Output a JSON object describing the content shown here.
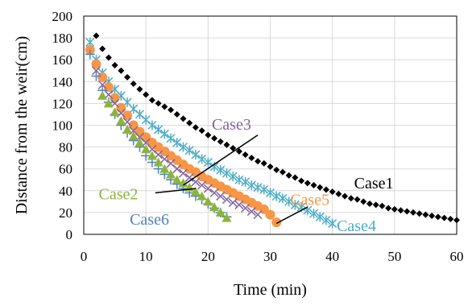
{
  "chart_data": {
    "type": "scatter",
    "xlabel": "Time (min)",
    "ylabel": "Distance from the weir(cm)",
    "xlim": [
      0,
      60
    ],
    "ylim": [
      0,
      200
    ],
    "xticks": [
      0,
      10,
      20,
      30,
      40,
      50,
      60
    ],
    "yticks": [
      0,
      20,
      40,
      60,
      80,
      100,
      120,
      140,
      160,
      180,
      200
    ],
    "grid": true,
    "annotations": [
      {
        "id": "case1",
        "text": "Case1",
        "color": "#000000"
      },
      {
        "id": "case2",
        "text": "Case2",
        "color": "#8cb43c"
      },
      {
        "id": "case3",
        "text": "Case3",
        "color": "#8064a2"
      },
      {
        "id": "case4",
        "text": "Case4",
        "color": "#4bacc6"
      },
      {
        "id": "case5",
        "text": "Case5",
        "color": "#f79646"
      },
      {
        "id": "case6",
        "text": "Case6",
        "color": "#4f81bd"
      }
    ],
    "series": [
      {
        "id": "case1",
        "color": "#000000",
        "marker": "diamond",
        "x": [
          2,
          3,
          4,
          5,
          6,
          7,
          8,
          9,
          10,
          11,
          12,
          13,
          14,
          15,
          16,
          17,
          18,
          19,
          20,
          21,
          22,
          23,
          24,
          25,
          26,
          27,
          28,
          29,
          30,
          31,
          32,
          33,
          34,
          35,
          36,
          37,
          38,
          39,
          40,
          41,
          42,
          43,
          44,
          45,
          46,
          47,
          48,
          49,
          50,
          51,
          52,
          53,
          54,
          55,
          56,
          57,
          58,
          59,
          60
        ],
        "y": [
          182,
          170,
          162,
          155,
          150,
          144,
          138,
          133,
          128,
          123,
          120,
          117,
          114,
          110,
          106,
          102,
          98,
          95,
          91,
          88,
          85,
          82,
          79,
          76,
          73,
          70,
          67,
          65,
          62,
          59,
          57,
          54,
          52,
          49,
          47,
          45,
          43,
          41,
          39,
          37,
          35,
          33,
          32,
          30,
          28,
          27,
          26,
          24,
          23,
          22,
          21,
          20,
          19,
          18,
          17,
          16,
          15,
          14,
          13
        ]
      },
      {
        "id": "case4",
        "color": "#4bacc6",
        "marker": "asterisk",
        "x": [
          1,
          2,
          3,
          4,
          5,
          6,
          7,
          8,
          9,
          10,
          11,
          12,
          13,
          14,
          15,
          16,
          17,
          18,
          19,
          20,
          21,
          22,
          23,
          24,
          25,
          26,
          27,
          28,
          29,
          30,
          31,
          32,
          33,
          34,
          35,
          36,
          37,
          38,
          39,
          40
        ],
        "y": [
          176,
          160,
          148,
          140,
          133,
          127,
          121,
          115,
          110,
          105,
          100,
          96,
          92,
          88,
          84,
          80,
          77,
          73,
          69,
          66,
          62,
          59,
          56,
          53,
          50,
          48,
          45,
          43,
          41,
          38,
          35,
          33,
          30,
          27,
          25,
          22,
          19,
          16,
          13,
          10
        ]
      },
      {
        "id": "case5",
        "color": "#f79646",
        "marker": "circle",
        "x": [
          1,
          2,
          3,
          4,
          5,
          6,
          7,
          8,
          9,
          10,
          11,
          12,
          13,
          14,
          15,
          16,
          17,
          18,
          19,
          20,
          21,
          22,
          23,
          24,
          25,
          26,
          27,
          28,
          29,
          30,
          31
        ],
        "y": [
          169,
          156,
          144,
          135,
          125,
          116,
          109,
          100,
          94,
          89,
          84,
          80,
          76,
          72,
          68,
          64,
          60,
          57,
          53,
          50,
          47,
          44,
          41,
          38,
          35,
          32,
          29,
          26,
          23,
          18,
          11
        ]
      },
      {
        "id": "case3",
        "color": "#8064a2",
        "marker": "x",
        "x": [
          2,
          3,
          4,
          5,
          6,
          7,
          8,
          9,
          10,
          11,
          12,
          13,
          14,
          15,
          16,
          17,
          18,
          19,
          20,
          21,
          22,
          23,
          24,
          25,
          26,
          27,
          28
        ],
        "y": [
          150,
          137,
          128,
          120,
          111,
          103,
          95,
          89,
          84,
          78,
          73,
          69,
          65,
          60,
          56,
          52,
          48,
          45,
          42,
          38,
          35,
          32,
          29,
          27,
          24,
          21,
          18
        ]
      },
      {
        "id": "case6",
        "color": "#4f81bd",
        "marker": "plus",
        "x": [
          1,
          2,
          3,
          4,
          5,
          6,
          7,
          8,
          9,
          10,
          11,
          12,
          13,
          14,
          15,
          16,
          17,
          18,
          19,
          20,
          21,
          22,
          23
        ],
        "y": [
          165,
          145,
          132,
          121,
          110,
          100,
          93,
          86,
          80,
          72,
          66,
          60,
          55,
          50,
          46,
          42,
          38,
          35,
          32,
          28,
          24,
          20,
          16
        ]
      },
      {
        "id": "case2",
        "color": "#8cb43c",
        "marker": "triangle",
        "x": [
          3,
          4,
          5,
          6,
          7,
          8,
          9,
          10,
          11,
          12,
          13,
          14,
          15,
          16,
          17,
          18,
          19,
          20,
          21,
          22,
          23
        ],
        "y": [
          127,
          120,
          112,
          104,
          96,
          90,
          84,
          78,
          72,
          66,
          60,
          55,
          50,
          47,
          43,
          39,
          35,
          30,
          25,
          20,
          15
        ]
      }
    ]
  }
}
